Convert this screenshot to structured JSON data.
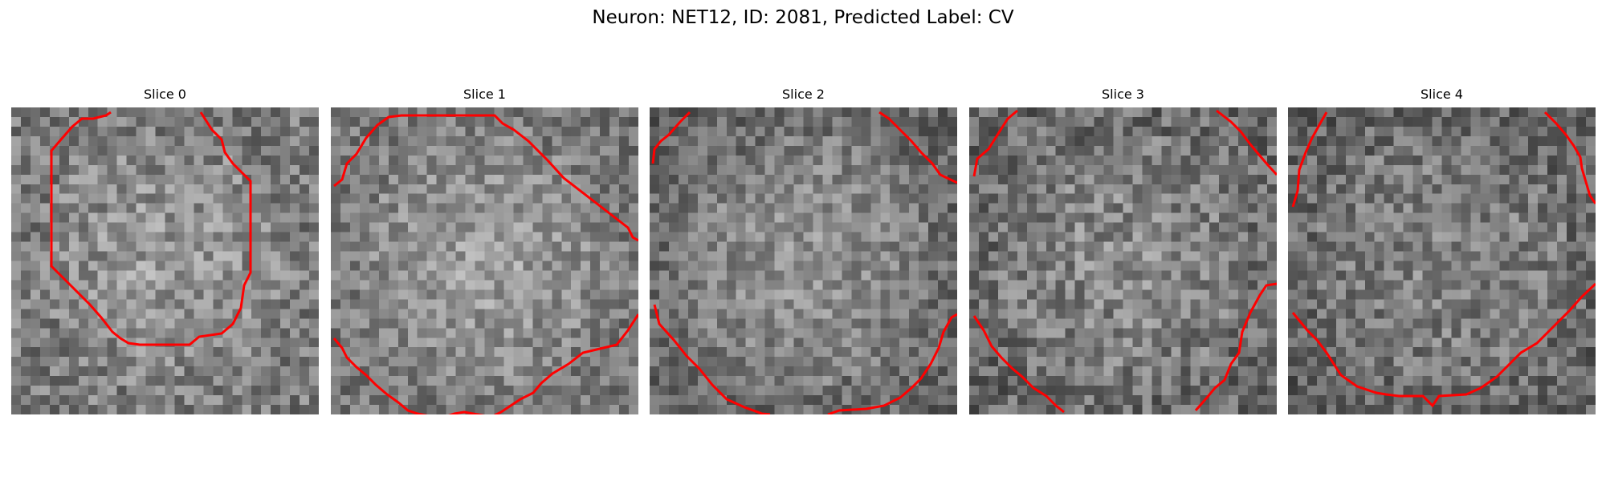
{
  "figure": {
    "title": "Neuron: NET12, ID: 2081, Predicted Label: CV"
  },
  "panels": [
    {
      "title": "Slice 0"
    },
    {
      "title": "Slice 1"
    },
    {
      "title": "Slice 2"
    },
    {
      "title": "Slice 3"
    },
    {
      "title": "Slice 4"
    }
  ],
  "colors": {
    "contour": "#ff0000",
    "colormap": "gray"
  }
}
